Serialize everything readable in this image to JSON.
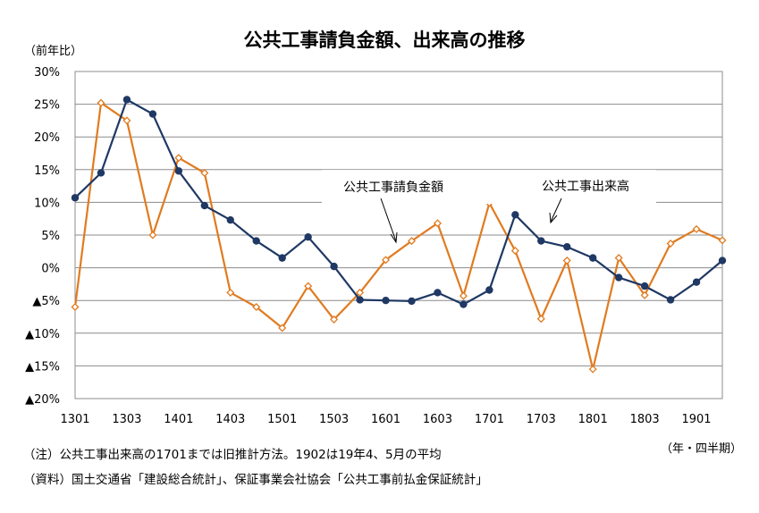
{
  "chart_data": {
    "type": "line",
    "title": "公共工事請負金額、出来高の推移",
    "ylabel": "（前年比）",
    "xlabel": "（年・四半期）",
    "ylim": [
      -20,
      30
    ],
    "yticks": [
      30,
      25,
      20,
      15,
      10,
      5,
      0,
      -5,
      -10,
      -15,
      -20
    ],
    "ytick_labels": [
      "30%",
      "25%",
      "20%",
      "15%",
      "10%",
      "5%",
      "0%",
      "▲5%",
      "▲10%",
      "▲15%",
      "▲20%"
    ],
    "xtick_labels": [
      "1301",
      "1303",
      "1401",
      "1403",
      "1501",
      "1503",
      "1601",
      "1603",
      "1701",
      "1703",
      "1801",
      "1803",
      "1901"
    ],
    "grid": true,
    "x": [
      "1301",
      "1302",
      "1303",
      "1304",
      "1401",
      "1402",
      "1403",
      "1404",
      "1501",
      "1502",
      "1503",
      "1504",
      "1601",
      "1602",
      "1603",
      "1604",
      "1701",
      "1702",
      "1703",
      "1704",
      "1801",
      "1802",
      "1803",
      "1804",
      "1901",
      "1902"
    ],
    "series": [
      {
        "name": "公共工事請負金額",
        "color": "#E07B20",
        "marker": "diamond-open",
        "values": [
          -6.0,
          25.2,
          22.5,
          5.0,
          16.8,
          14.5,
          -3.8,
          -6.0,
          -9.2,
          -2.8,
          -7.9,
          -3.8,
          1.2,
          4.1,
          6.8,
          -4.3,
          9.9,
          2.6,
          -7.8,
          1.1,
          -15.5,
          1.5,
          -4.2,
          3.7,
          5.9,
          4.2
        ]
      },
      {
        "name": "公共工事出来高",
        "color": "#1F3864",
        "marker": "circle-filled",
        "values": [
          10.7,
          14.5,
          25.7,
          23.5,
          14.8,
          9.5,
          7.3,
          4.1,
          1.5,
          4.7,
          0.2,
          -4.9,
          -5.0,
          -5.1,
          -3.8,
          -5.6,
          -3.4,
          8.1,
          4.1,
          3.2,
          1.5,
          -1.5,
          -2.8,
          -4.9,
          -2.2,
          1.1
        ]
      }
    ],
    "annotations": [
      {
        "text": "公共工事請負金額",
        "series": "公共工事請負金額"
      },
      {
        "text": "公共工事出来高",
        "series": "公共工事出来高"
      }
    ]
  },
  "notes": [
    "（注）公共工事出来高の1701までは旧推計方法。1902は19年4、5月の平均",
    "（資料）国土交通省「建設総合統計」、保証事業会社協会「公共工事前払金保証統計」"
  ]
}
